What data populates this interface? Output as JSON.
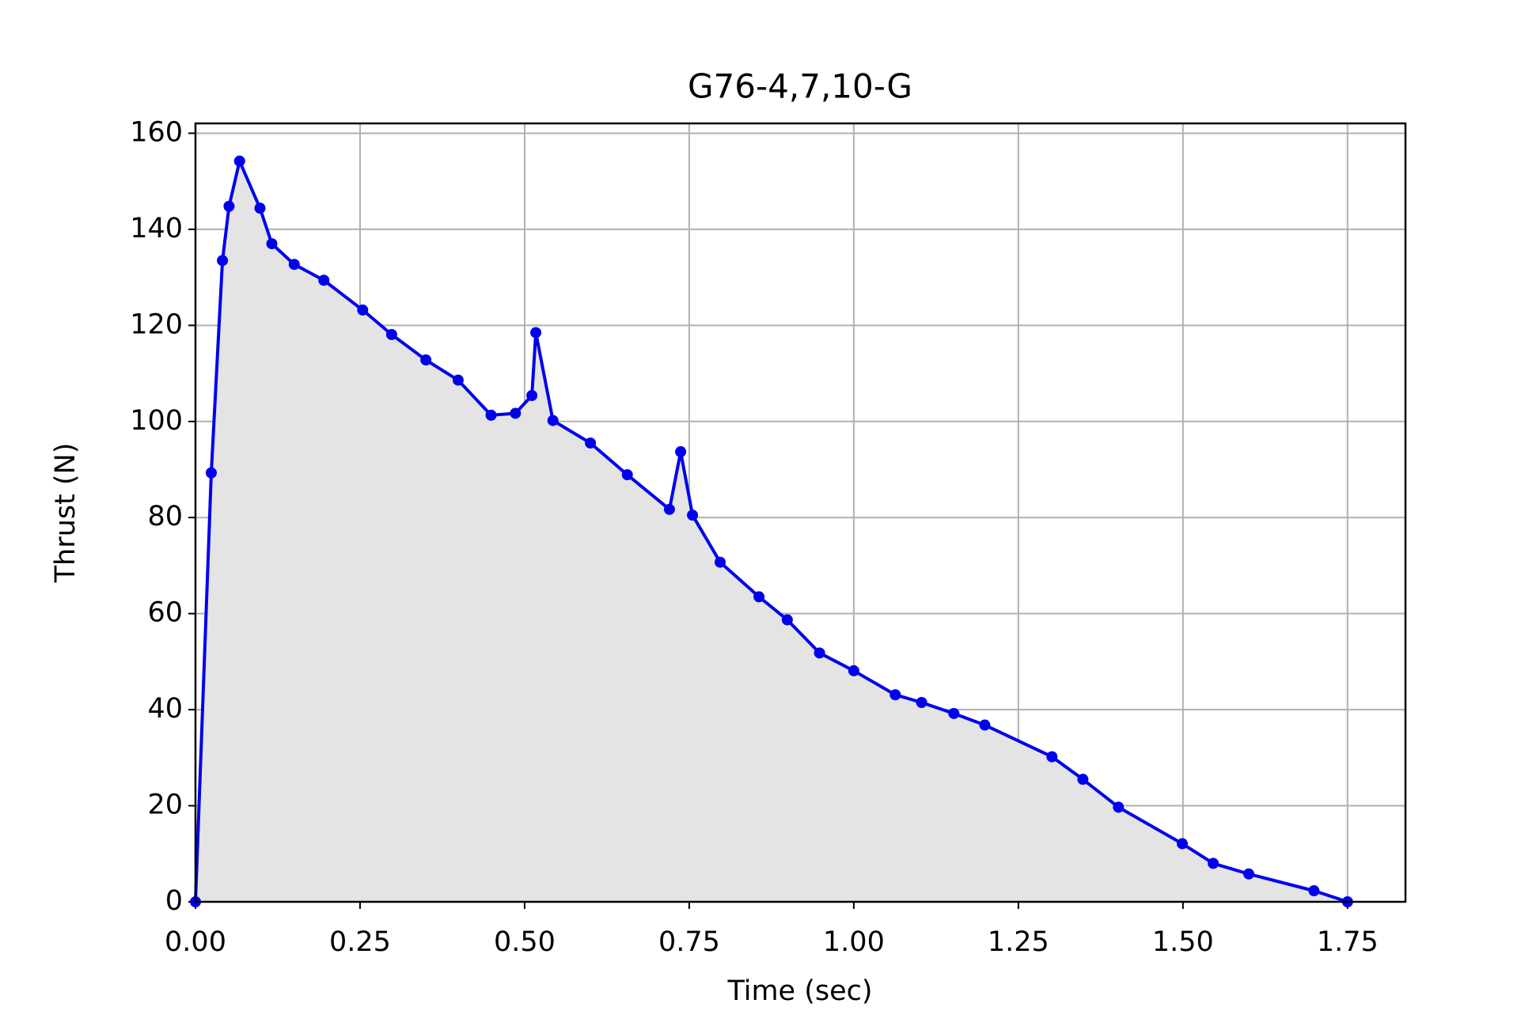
{
  "chart_data": {
    "type": "line",
    "title": "G76-4,7,10-G",
    "x_label": "Time (sec)",
    "y_label": "Thrust (N)",
    "x": [
      0,
      0.024,
      0.041,
      0.051,
      0.067,
      0.098,
      0.116,
      0.15,
      0.195,
      0.254,
      0.298,
      0.35,
      0.399,
      0.449,
      0.486,
      0.511,
      0.517,
      0.543,
      0.6,
      0.656,
      0.72,
      0.737,
      0.755,
      0.797,
      0.856,
      0.899,
      0.948,
      1.0,
      1.063,
      1.103,
      1.152,
      1.199,
      1.301,
      1.348,
      1.402,
      1.499,
      1.546,
      1.6,
      1.699,
      1.75
    ],
    "series": [
      {
        "name": "Thrust",
        "color": "#0000ee",
        "fill": "#e4e4e4",
        "values": [
          0,
          89.3,
          133.5,
          144.8,
          154.2,
          144.4,
          137.0,
          132.7,
          129.4,
          123.2,
          118.1,
          112.8,
          108.6,
          101.3,
          101.7,
          105.4,
          118.5,
          100.2,
          95.5,
          88.9,
          81.7,
          93.7,
          80.5,
          70.7,
          63.5,
          58.7,
          51.8,
          48.1,
          43.1,
          41.5,
          39.2,
          36.8,
          30.2,
          25.5,
          19.7,
          12.1,
          8.0,
          5.8,
          2.3,
          0
        ]
      }
    ],
    "xlim": [
      0,
      1.838
    ],
    "ylim": [
      0,
      162.05
    ],
    "xticks": [
      {
        "value": 0,
        "label": "0.00"
      },
      {
        "value": 0.25,
        "label": "0.25"
      },
      {
        "value": 0.5,
        "label": "0.50"
      },
      {
        "value": 0.75,
        "label": "0.75"
      },
      {
        "value": 1.0,
        "label": "1.00"
      },
      {
        "value": 1.25,
        "label": "1.25"
      },
      {
        "value": 1.5,
        "label": "1.50"
      },
      {
        "value": 1.75,
        "label": "1.75"
      }
    ],
    "yticks": [
      0,
      20,
      40,
      60,
      80,
      100,
      120,
      140,
      160
    ],
    "grid": true
  }
}
